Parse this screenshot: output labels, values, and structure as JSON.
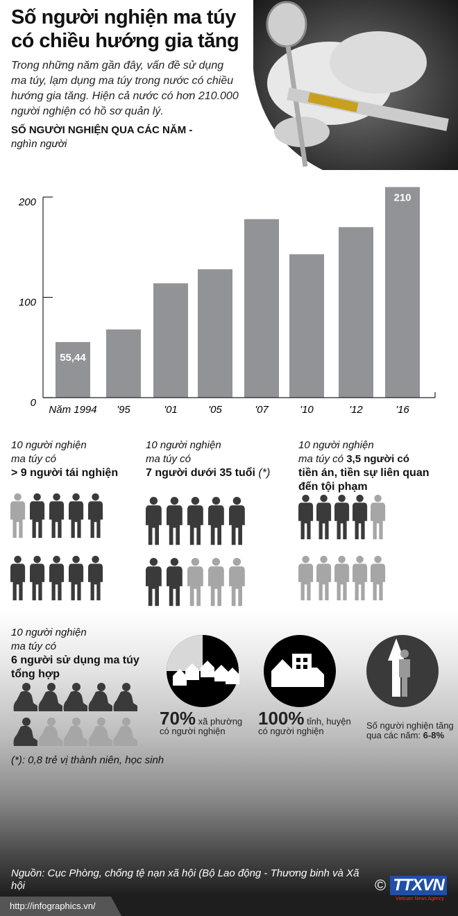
{
  "header": {
    "title_line1": "Số người nghiện ma túy",
    "title_line2": "có chiều hướng gia tăng",
    "intro": "Trong những năm gần đây, vấn đề sử dụng ma túy, lạm dụng ma túy trong nước có chiều hướng gia tăng. Hiện cả nước có hơn 210.000 người nghiện có hồ sơ quản lý."
  },
  "chart_data": {
    "type": "bar",
    "title": "SỐ NGƯỜI NGHIỆN QUA CÁC NĂM -",
    "unit": "nghìn người",
    "categories": [
      "Năm 1994",
      "'95",
      "'01",
      "'05",
      "'07",
      "'10",
      "'12",
      "'16"
    ],
    "values": [
      55.44,
      68,
      114,
      128,
      178,
      143,
      170,
      210
    ],
    "data_labels": {
      "0": "55,44",
      "7": "210"
    },
    "yticks": [
      0,
      100,
      200
    ],
    "ylim": [
      0,
      200
    ],
    "grid": false,
    "bar_color": "#929396"
  },
  "stats": [
    {
      "line1": "10 người nghiện",
      "line2": "ma túy có",
      "bold": "> 9 người tái nghiện",
      "rows": [
        [
          0,
          1,
          1,
          1,
          1
        ],
        [
          1,
          1,
          1,
          1,
          1
        ]
      ]
    },
    {
      "line1": "10 người nghiện",
      "line2": "ma túy có",
      "bold": "7 người dưới 35 tuổi",
      "note": "(*)",
      "rows": [
        [
          1,
          1,
          1,
          1,
          1
        ],
        [
          1,
          1,
          0,
          0,
          0
        ]
      ]
    },
    {
      "line1": "10 người nghiện",
      "line2": "ma túy có",
      "bold_inline": "3,5 người có",
      "bold": "tiền án, tiền sự liên quan",
      "bold2": "đến tội phạm",
      "rows": [
        [
          1,
          1,
          1,
          1,
          0
        ],
        [
          0,
          0,
          0,
          0,
          0
        ]
      ]
    },
    {
      "line1": "10 người nghiện",
      "line2": "ma túy có",
      "bold": "6 người sử dụng ma túy",
      "bold2": "tổng hợp",
      "rows": [
        [
          1,
          1,
          1,
          1,
          1
        ],
        [
          1,
          0,
          0,
          0,
          0
        ]
      ]
    }
  ],
  "circles": [
    {
      "value": "70%",
      "text1": "xã phường",
      "text2": "có người nghiện",
      "icon": "houses-icon",
      "fraction": 0.7
    },
    {
      "value": "100%",
      "text1": "tỉnh, huyện",
      "text2": "có người nghiện",
      "icon": "buildings-icon"
    },
    {
      "text1": "Số người nghiện tăng",
      "text2": "qua các năm: ",
      "bold": "6-8%",
      "icon": "arrow-up-person-icon"
    }
  ],
  "footnote": "(*): 0,8 trẻ vị thành niên, học sinh",
  "footer": {
    "source": "Nguồn: Cục Phòng, chống tệ nạn xã hội (Bộ Lao động - Thương binh và Xã hội",
    "url": "http://infographics.vn/",
    "logo": "TTXVN",
    "logo_sub": "Vietnam News Agency",
    "copyright": "©"
  },
  "colors": {
    "dark": "#3a3a3a",
    "light": "#a6a6a6",
    "bar": "#929396"
  }
}
